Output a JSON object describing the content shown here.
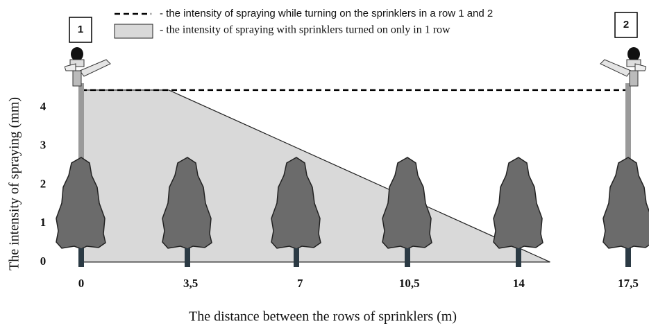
{
  "chart_data": {
    "type": "area",
    "x_label": "The distance between the rows of sprinklers (m)",
    "y_label": "The intensity of spraying (mm)",
    "annotations": [
      "1",
      "2"
    ],
    "xlim": [
      -0.5,
      18
    ],
    "ylim": [
      -0.2,
      4.9
    ],
    "xticks": [
      0,
      {
        "value": 3.5,
        "label": "3,5"
      },
      7,
      {
        "value": 10.5,
        "label": "10,5"
      },
      14,
      {
        "value": 17.5,
        "label": "17,5"
      }
    ],
    "yticks": [
      0,
      1,
      2,
      3,
      4
    ],
    "series": [
      {
        "name": "- the intensity of spraying with sprinklers turned on only in 1 row",
        "style": "area",
        "color": "#d9d9d9",
        "x": [
          0,
          2.8,
          15
        ],
        "values": [
          4.45,
          4.45,
          0
        ]
      },
      {
        "name": "- the intensity of spraying while turning on the sprinklers in a row 1 and 2",
        "style": "dashed",
        "color": "#000000",
        "x": [
          0,
          17.5
        ],
        "values": [
          4.45,
          4.45
        ]
      }
    ]
  }
}
